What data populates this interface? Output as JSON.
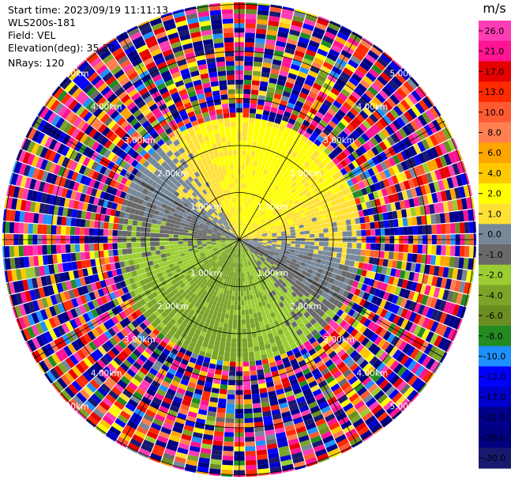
{
  "header": {
    "start_time": "Start time: 2023/09/19 11:11:13",
    "instrument": "WLS200s-181",
    "field": "Field: VEL",
    "elevation": "Elevation(deg): 35.30",
    "nrays": "NRays: 120"
  },
  "chart_data": {
    "type": "heatmap",
    "projection": "polar-ppi",
    "field": "VEL",
    "units": "m/s",
    "nrays": 120,
    "range_rings": [
      {
        "label": "1.00km",
        "km": 1
      },
      {
        "label": "2.00km",
        "km": 2
      },
      {
        "label": "3.00km",
        "km": 3
      },
      {
        "label": "4.00km",
        "km": 4
      },
      {
        "label": "5.00km",
        "km": 5
      }
    ],
    "radial_spokes_deg": [
      0,
      30,
      60,
      90,
      120,
      150,
      180,
      210,
      240,
      270,
      300,
      330
    ],
    "colorbar": {
      "unit_label": "m/s",
      "ticks": [
        "26.0",
        "21.0",
        "17.0",
        "13.0",
        "10.0",
        "8.0",
        "6.0",
        "4.0",
        "2.0",
        "1.0",
        "0.0",
        "-1.0",
        "-2.0",
        "-4.0",
        "-6.0",
        "-8.0",
        "-10.0",
        "-13.0",
        "-17.0",
        "-21.0",
        "-26.0",
        "-30.0"
      ],
      "bins": [
        {
          "min": 26,
          "max": 30,
          "color": "#ff3cb4"
        },
        {
          "min": 21,
          "max": 26,
          "color": "#ff1493"
        },
        {
          "min": 17,
          "max": 21,
          "color": "#e60000"
        },
        {
          "min": 13,
          "max": 17,
          "color": "#ff2a00"
        },
        {
          "min": 10,
          "max": 13,
          "color": "#ff5a32"
        },
        {
          "min": 8,
          "max": 10,
          "color": "#ff7f50"
        },
        {
          "min": 6,
          "max": 8,
          "color": "#ffa500"
        },
        {
          "min": 4,
          "max": 6,
          "color": "#ffc800"
        },
        {
          "min": 2,
          "max": 4,
          "color": "#ffff00"
        },
        {
          "min": 1,
          "max": 2,
          "color": "#ffe135"
        },
        {
          "min": 0,
          "max": 1,
          "color": "#778899"
        },
        {
          "min": -1,
          "max": 0,
          "color": "#696969"
        },
        {
          "min": -2,
          "max": -1,
          "color": "#9acd32"
        },
        {
          "min": -4,
          "max": -2,
          "color": "#7ba428"
        },
        {
          "min": -6,
          "max": -4,
          "color": "#6b8e23"
        },
        {
          "min": -8,
          "max": -6,
          "color": "#228b22"
        },
        {
          "min": -10,
          "max": -8,
          "color": "#1e90ff"
        },
        {
          "min": -13,
          "max": -10,
          "color": "#0000ff"
        },
        {
          "min": -17,
          "max": -13,
          "color": "#0000cd"
        },
        {
          "min": -21,
          "max": -17,
          "color": "#00008b"
        },
        {
          "min": -26,
          "max": -21,
          "color": "#000080"
        },
        {
          "min": -30,
          "max": -26,
          "color": "#191970"
        }
      ]
    }
  }
}
